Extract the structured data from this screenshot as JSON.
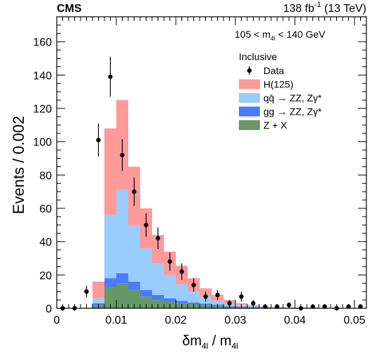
{
  "header": {
    "experiment": "CMS",
    "lumi": "138 fb",
    "lumi_exp": "-1",
    "energy": " (13 TeV)"
  },
  "annotations": {
    "mass_window": "105 < m",
    "mass_window_sub": "4l",
    "mass_window_tail": " < 140 GeV",
    "category": "Inclusive"
  },
  "axes": {
    "xlabel_main": "δm",
    "xlabel_sub1": "4l",
    "xlabel_mid": " / m",
    "xlabel_sub2": "4l",
    "ylabel": "Events / 0.002"
  },
  "legend": {
    "position": "top-right",
    "entries": [
      {
        "label": "Data",
        "kind": "marker",
        "color": "#000000"
      },
      {
        "label": "H(125)",
        "kind": "box",
        "color": "#fe9a9a"
      },
      {
        "label": "qq̄ → ZZ, Zγ*",
        "kind": "box",
        "color": "#99ccff"
      },
      {
        "label": "gg → ZZ, Zγ*",
        "kind": "box",
        "color": "#4d79ff"
      },
      {
        "label": "Z + X",
        "kind": "box",
        "color": "#669966"
      }
    ]
  },
  "chart_data": {
    "type": "bar",
    "stacked": true,
    "bin_width": 0.002,
    "xlim": [
      0,
      0.052
    ],
    "ylim": [
      0,
      175
    ],
    "x_ticks": [
      0,
      0.01,
      0.02,
      0.03,
      0.04,
      0.05
    ],
    "x_tick_labels": [
      "0",
      "0.01",
      "0.02",
      "0.03",
      "0.04",
      "0.05"
    ],
    "y_ticks": [
      0,
      20,
      40,
      60,
      80,
      100,
      120,
      140,
      160
    ],
    "y_tick_labels": [
      "0",
      "20",
      "40",
      "60",
      "80",
      "100",
      "120",
      "140",
      "160"
    ],
    "bin_edges": [
      0,
      0.002,
      0.004,
      0.006,
      0.008,
      0.01,
      0.012,
      0.014,
      0.016,
      0.018,
      0.02,
      0.022,
      0.024,
      0.026,
      0.028,
      0.03,
      0.032,
      0.034,
      0.036,
      0.038,
      0.04,
      0.042,
      0.044,
      0.046,
      0.048,
      0.05,
      0.052
    ],
    "series": [
      {
        "name": "Z + X",
        "color": "#669966",
        "values": [
          0,
          0,
          0,
          2,
          13,
          15,
          11,
          7,
          5,
          4,
          3,
          2.5,
          2,
          1.5,
          1,
          0.8,
          0.6,
          0.5,
          0.3,
          0.3,
          0.2,
          0.2,
          0.1,
          0.1,
          0.1,
          0.1
        ]
      },
      {
        "name": "gg → ZZ, Zγ*",
        "color": "#4d79ff",
        "values": [
          0,
          0,
          0,
          1,
          5,
          6,
          5,
          4,
          3,
          2,
          1.5,
          1,
          0.8,
          0.6,
          0.4,
          0.3,
          0.2,
          0.1,
          0.1,
          0.1,
          0,
          0,
          0,
          0,
          0,
          0
        ]
      },
      {
        "name": "qq̄ → ZZ, Zγ*",
        "color": "#99ccff",
        "values": [
          0,
          0,
          0,
          3,
          38,
          50,
          34,
          25,
          19,
          14,
          10,
          6.5,
          4.2,
          2.4,
          1.6,
          0.9,
          0.7,
          0.4,
          0.3,
          0.1,
          0.3,
          0.3,
          0.2,
          0.1,
          0,
          0
        ]
      },
      {
        "name": "H(125)",
        "color": "#fe9a9a",
        "values": [
          0,
          0,
          0,
          10,
          52,
          54,
          35,
          24,
          17,
          14,
          11,
          8,
          5,
          3.5,
          2,
          1,
          0.5,
          0,
          0,
          0,
          0,
          0,
          0,
          0,
          0,
          0
        ]
      }
    ],
    "data_points": [
      {
        "x": 0.001,
        "y": 0,
        "err": 0.5
      },
      {
        "x": 0.003,
        "y": 0,
        "err": 0.5
      },
      {
        "x": 0.005,
        "y": 10,
        "err": 3.5
      },
      {
        "x": 0.007,
        "y": 101,
        "err": 10
      },
      {
        "x": 0.009,
        "y": 139,
        "err": 12
      },
      {
        "x": 0.011,
        "y": 92,
        "err": 9.5
      },
      {
        "x": 0.013,
        "y": 70,
        "err": 8.5
      },
      {
        "x": 0.015,
        "y": 50,
        "err": 7
      },
      {
        "x": 0.017,
        "y": 42,
        "err": 6.5
      },
      {
        "x": 0.019,
        "y": 28,
        "err": 5.5
      },
      {
        "x": 0.021,
        "y": 22,
        "err": 5
      },
      {
        "x": 0.023,
        "y": 14,
        "err": 4
      },
      {
        "x": 0.025,
        "y": 7,
        "err": 3
      },
      {
        "x": 0.027,
        "y": 8,
        "err": 3
      },
      {
        "x": 0.029,
        "y": 3,
        "err": 2
      },
      {
        "x": 0.031,
        "y": 7,
        "err": 3
      },
      {
        "x": 0.033,
        "y": 3,
        "err": 2
      },
      {
        "x": 0.035,
        "y": 1,
        "err": 1
      },
      {
        "x": 0.037,
        "y": 1,
        "err": 1
      },
      {
        "x": 0.039,
        "y": 2,
        "err": 1.5
      },
      {
        "x": 0.041,
        "y": 0,
        "err": 0.5
      },
      {
        "x": 0.043,
        "y": 1,
        "err": 1
      },
      {
        "x": 0.045,
        "y": 1,
        "err": 1
      },
      {
        "x": 0.047,
        "y": 0,
        "err": 0.5
      },
      {
        "x": 0.049,
        "y": 1,
        "err": 1
      },
      {
        "x": 0.051,
        "y": 1,
        "err": 1
      }
    ]
  }
}
